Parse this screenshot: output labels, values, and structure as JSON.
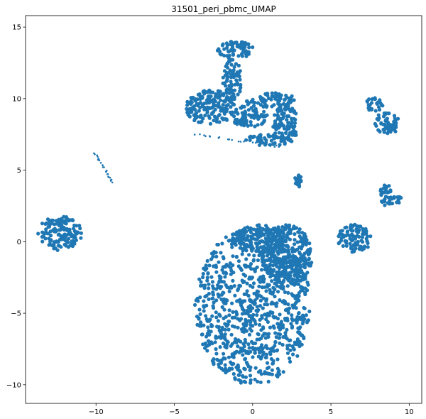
{
  "chart_data": {
    "type": "scatter",
    "title": "31501_peri_pbmc_UMAP",
    "xlabel": "",
    "ylabel": "",
    "xlim": [
      -14.5,
      10.8
    ],
    "ylim": [
      -11.3,
      15.8
    ],
    "xticks": [
      -10,
      -5,
      0,
      5,
      10
    ],
    "yticks": [
      -10,
      -5,
      0,
      5,
      10,
      15
    ],
    "xtick_labels": [
      "−10",
      "−5",
      "0",
      "5",
      "10"
    ],
    "ytick_labels": [
      "−10",
      "−5",
      "0",
      "5",
      "10",
      "15"
    ],
    "grid": false,
    "legend": false,
    "point_color": "#1f77b4",
    "clusters": [
      {
        "cx": 0.0,
        "cy": -4.5,
        "rx": 3.7,
        "ry": 5.5
      },
      {
        "cx": 0.5,
        "cy": 0.2,
        "rx": 1.8,
        "ry": 1.0
      },
      {
        "cx": 2.2,
        "cy": -1.0,
        "rx": 1.6,
        "ry": 2.2
      },
      {
        "cx": -2.7,
        "cy": 9.4,
        "rx": 1.6,
        "ry": 1.2
      },
      {
        "cx": -1.1,
        "cy": 13.4,
        "rx": 1.2,
        "ry": 0.6
      },
      {
        "cx": -1.3,
        "cy": 11.3,
        "rx": 0.6,
        "ry": 1.5
      },
      {
        "cx": 1.2,
        "cy": 9.9,
        "rx": 1.6,
        "ry": 0.5
      },
      {
        "cx": 2.1,
        "cy": 8.2,
        "rx": 0.8,
        "ry": 1.4
      },
      {
        "cx": 0.9,
        "cy": 7.1,
        "rx": 1.6,
        "ry": 0.4
      },
      {
        "cx": -0.2,
        "cy": 8.8,
        "rx": 1.2,
        "ry": 0.8
      },
      {
        "cx": -12.3,
        "cy": 0.6,
        "rx": 1.4,
        "ry": 1.2
      },
      {
        "cx": 6.5,
        "cy": 0.2,
        "rx": 1.1,
        "ry": 1.0
      },
      {
        "cx": 7.8,
        "cy": 9.6,
        "rx": 0.6,
        "ry": 0.5
      },
      {
        "cx": 8.6,
        "cy": 8.3,
        "rx": 0.8,
        "ry": 0.8
      },
      {
        "cx": 8.5,
        "cy": 3.3,
        "rx": 0.35,
        "ry": 0.9
      },
      {
        "cx": 9.0,
        "cy": 2.9,
        "rx": 0.6,
        "ry": 0.3
      },
      {
        "cx": 2.9,
        "cy": 4.3,
        "rx": 0.2,
        "ry": 0.5
      }
    ],
    "strands": [
      {
        "x1": -10.1,
        "y1": 6.2,
        "x2": -8.8,
        "y2": 3.9
      },
      {
        "x1": -3.7,
        "y1": 7.5,
        "x2": 2.0,
        "y2": 6.6
      }
    ]
  }
}
